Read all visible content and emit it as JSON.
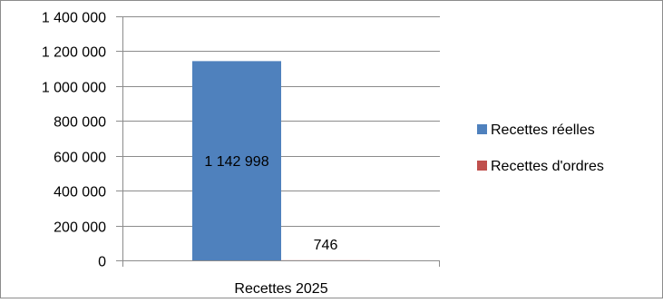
{
  "chart_data": {
    "type": "bar",
    "categories": [
      "Recettes 2025"
    ],
    "series": [
      {
        "name": "Recettes réelles",
        "values": [
          1142998
        ],
        "label": "1 142 998",
        "color": "#4F81BD"
      },
      {
        "name": "Recettes d'ordres",
        "values": [
          746
        ],
        "label": "746",
        "color": "#C0504D"
      }
    ],
    "ylim": [
      0,
      1400000
    ],
    "yticks": [
      0,
      200000,
      400000,
      600000,
      800000,
      1000000,
      1200000,
      1400000
    ],
    "ytick_labels": [
      "0",
      "200 000",
      "400 000",
      "600 000",
      "800 000",
      "1 000 000",
      "1 200 000",
      "1 400 000"
    ],
    "grid": true,
    "legend_position": "right",
    "title": "",
    "xlabel": "",
    "ylabel": ""
  }
}
